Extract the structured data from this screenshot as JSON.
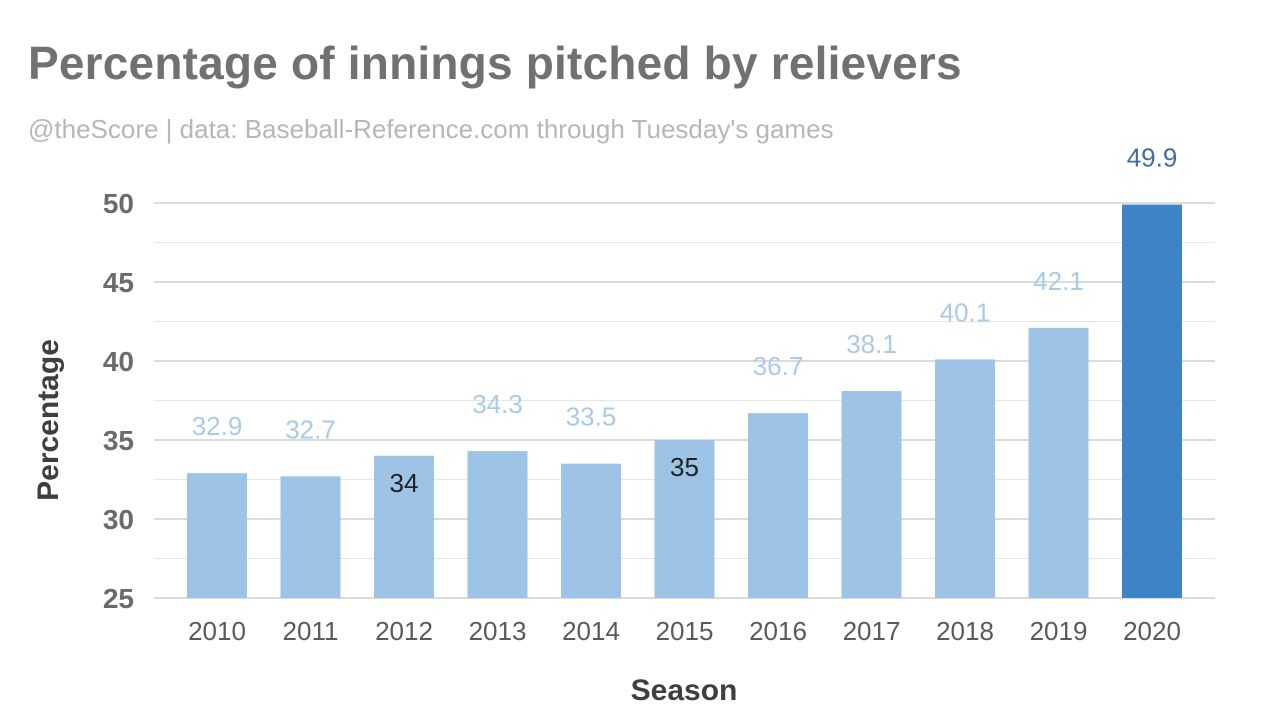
{
  "header": {
    "title": "Percentage of innings pitched by relievers",
    "subtitle": "@theScore | data: Baseball-Reference.com through Tuesday's games"
  },
  "colors": {
    "bar": "#9dc3e6",
    "bar_highlight": "#3d84c6",
    "label_light": "#a9cbe8",
    "label_dark": "#222222",
    "label_highlight": "#3f6f9e",
    "grid": "#d0d0d0"
  },
  "chart_data": {
    "type": "bar",
    "categories": [
      "2010",
      "2011",
      "2012",
      "2013",
      "2014",
      "2015",
      "2016",
      "2017",
      "2018",
      "2019",
      "2020"
    ],
    "values": [
      32.9,
      32.7,
      34,
      34.3,
      33.5,
      35,
      36.7,
      38.1,
      40.1,
      42.1,
      49.9
    ],
    "value_labels": [
      "32.9",
      "32.7",
      "34",
      "34.3",
      "33.5",
      "35",
      "36.7",
      "38.1",
      "40.1",
      "42.1",
      "49.9"
    ],
    "inside_labels": [
      "2012",
      "2015"
    ],
    "highlight": "2020",
    "xlabel": "Season",
    "ylabel": "Percentage",
    "ylim": [
      25,
      50
    ],
    "yticks": [
      25,
      30,
      35,
      40,
      45,
      50
    ],
    "minor_grid_step": 2.5,
    "grid": true
  }
}
